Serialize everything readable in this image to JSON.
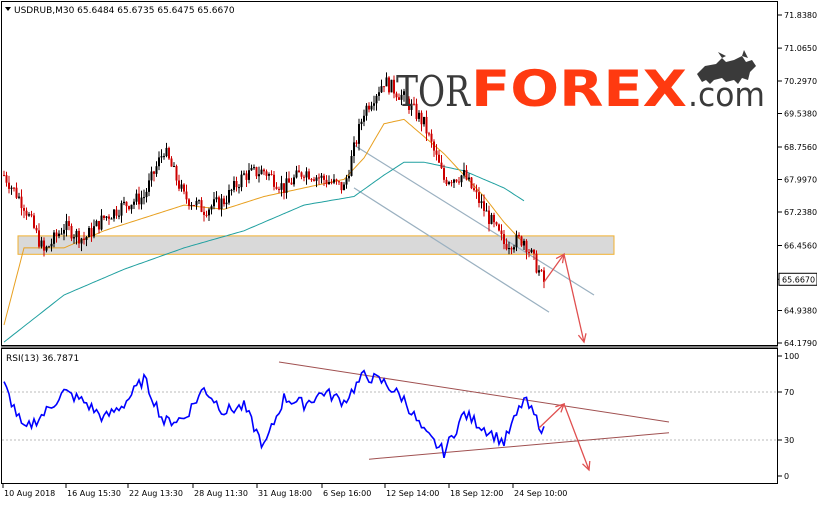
{
  "header": {
    "symbol_line": "USDRUB,M30  65.6484 65.6735 65.6475 65.6670"
  },
  "logo": {
    "tor": "TOR",
    "forex": "FOREX",
    "dotcom": ".com"
  },
  "rsi_panel": {
    "label": "RSI(13) 36.7871"
  },
  "colors": {
    "candle_up": "#000000",
    "candle_down": "#cc0000",
    "ma_fast": "#e8a020",
    "ma_slow": "#20a0a0",
    "rsi": "#0000ff",
    "zone_fill": "#cccccc",
    "zone_border": "#f0b030",
    "channel": "#9ab0c0",
    "arrow": "#e05050",
    "wedge": "#a05050",
    "logo_dark": "#3a3a3a",
    "logo_red": "#ff3a10"
  },
  "chart_data": [
    {
      "type": "candlestick",
      "symbol": "USDRUB",
      "timeframe": "M30",
      "ohlc_last": {
        "open": 65.6484,
        "high": 65.6735,
        "low": 65.6475,
        "close": 65.667
      },
      "last_price_label": "65.6670",
      "y_ticks": [
        71.838,
        71.065,
        70.297,
        69.538,
        68.756,
        67.997,
        67.238,
        66.456,
        65.667,
        64.938,
        64.179
      ],
      "ylim": [
        64.179,
        71.838
      ],
      "x_tick_labels": [
        "10 Aug 2018",
        "16 Aug 15:30",
        "22 Aug 13:30",
        "28 Aug 11:30",
        "31 Aug 18:00",
        "6 Sep 16:00",
        "12 Sep 14:00",
        "18 Sep 12:00",
        "24 Sep 10:00"
      ],
      "price_path": [
        [
          0,
          68.1
        ],
        [
          4,
          67.4
        ],
        [
          8,
          66.3
        ],
        [
          12,
          66.9
        ],
        [
          16,
          66.6
        ],
        [
          20,
          67.1
        ],
        [
          24,
          67.4
        ],
        [
          28,
          67.6
        ],
        [
          32,
          68.7
        ],
        [
          36,
          67.6
        ],
        [
          40,
          67.3
        ],
        [
          44,
          67.5
        ],
        [
          48,
          68.1
        ],
        [
          52,
          68.2
        ],
        [
          56,
          67.8
        ],
        [
          60,
          68.2
        ],
        [
          64,
          68.0
        ],
        [
          68,
          67.8
        ],
        [
          72,
          69.6
        ],
        [
          76,
          70.3
        ],
        [
          80,
          69.9
        ],
        [
          84,
          69.3
        ],
        [
          88,
          68.0
        ],
        [
          92,
          68.1
        ],
        [
          96,
          67.3
        ],
        [
          100,
          66.5
        ],
        [
          104,
          66.6
        ],
        [
          108,
          65.6
        ]
      ],
      "ma_fast_path": [
        [
          0,
          64.6
        ],
        [
          4,
          66.4
        ],
        [
          12,
          66.4
        ],
        [
          20,
          66.8
        ],
        [
          28,
          67.1
        ],
        [
          36,
          67.4
        ],
        [
          44,
          67.3
        ],
        [
          52,
          67.6
        ],
        [
          60,
          67.8
        ],
        [
          68,
          68.0
        ],
        [
          72,
          68.5
        ],
        [
          76,
          69.3
        ],
        [
          80,
          69.4
        ],
        [
          84,
          69.0
        ],
        [
          88,
          68.6
        ],
        [
          92,
          68.1
        ],
        [
          96,
          67.6
        ],
        [
          100,
          67.0
        ],
        [
          104,
          66.5
        ]
      ],
      "ma_slow_path": [
        [
          0,
          64.2
        ],
        [
          12,
          65.3
        ],
        [
          24,
          65.9
        ],
        [
          36,
          66.4
        ],
        [
          48,
          66.8
        ],
        [
          60,
          67.4
        ],
        [
          70,
          67.6
        ],
        [
          76,
          68.1
        ],
        [
          80,
          68.4
        ],
        [
          84,
          68.4
        ],
        [
          92,
          68.2
        ],
        [
          100,
          67.8
        ],
        [
          104,
          67.5
        ]
      ],
      "support_zone": [
        66.25,
        66.68
      ],
      "channel_upper": [
        [
          70,
          68.8
        ],
        [
          118,
          65.3
        ]
      ],
      "channel_lower": [
        [
          70,
          67.8
        ],
        [
          109,
          64.9
        ]
      ],
      "forecast_path": [
        [
          108,
          65.6
        ],
        [
          112,
          66.25
        ],
        [
          116,
          64.2
        ]
      ]
    },
    {
      "type": "line",
      "name": "RSI(13)",
      "last_value": 36.7871,
      "y_ticks": [
        100,
        70,
        30,
        0
      ],
      "ylim": [
        0,
        100
      ],
      "values": [
        [
          0,
          76
        ],
        [
          4,
          38
        ],
        [
          8,
          52
        ],
        [
          12,
          70
        ],
        [
          16,
          62
        ],
        [
          20,
          48
        ],
        [
          24,
          60
        ],
        [
          28,
          81
        ],
        [
          32,
          45
        ],
        [
          36,
          48
        ],
        [
          40,
          73
        ],
        [
          44,
          54
        ],
        [
          48,
          58
        ],
        [
          52,
          24
        ],
        [
          56,
          65
        ],
        [
          60,
          60
        ],
        [
          64,
          70
        ],
        [
          68,
          62
        ],
        [
          72,
          84
        ],
        [
          76,
          78
        ],
        [
          80,
          64
        ],
        [
          84,
          36
        ],
        [
          88,
          20
        ],
        [
          92,
          52
        ],
        [
          96,
          40
        ],
        [
          100,
          28
        ],
        [
          104,
          64
        ],
        [
          108,
          37
        ]
      ],
      "wedge_upper": [
        [
          55,
          95
        ],
        [
          133,
          45
        ]
      ],
      "wedge_lower": [
        [
          73,
          14
        ],
        [
          133,
          36
        ]
      ],
      "forecast_path": [
        [
          107,
          40
        ],
        [
          112,
          60
        ],
        [
          117,
          5
        ]
      ]
    }
  ]
}
